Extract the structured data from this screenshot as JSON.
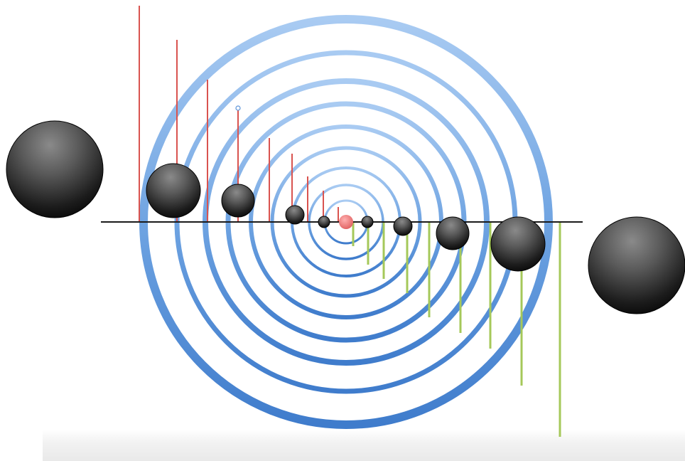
{
  "diagram": {
    "colors": {
      "rings": "#5d94d8",
      "ring_light": "#9ec3ee",
      "axis": "#1a1a1a",
      "red_lines": "#d9534f",
      "green_lines": "#a5c85a",
      "center_dot": "#e88080",
      "sphere_light": "#7a7a7a",
      "sphere_dark": "#0a0a0a"
    },
    "icons": [
      "sphere-icon",
      "ring-icon"
    ]
  }
}
